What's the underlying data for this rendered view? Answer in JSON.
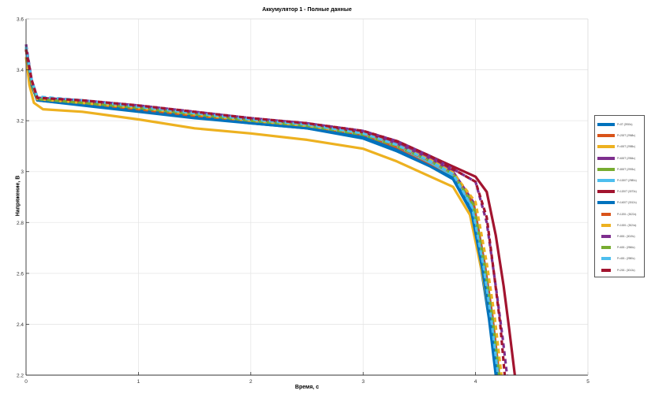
{
  "title": "Аккумулятор 1 - Полные данные",
  "xlabel": "Время, с",
  "ylabel": "Напряжение, В",
  "axes": {
    "xlim": [
      0,
      5
    ],
    "ylim": [
      2.2,
      3.6
    ],
    "xticks": [
      "0",
      "1",
      "2",
      "3",
      "4",
      "5"
    ],
    "yticks": [
      "2.2",
      "2.4",
      "2.6",
      "2.8",
      "3",
      "3.2",
      "3.4",
      "3.6"
    ]
  },
  "legend": {
    "items": [
      {
        "label": "P=0Т (2950с)",
        "color": "#0072BD",
        "style": "solid"
      },
      {
        "label": "P=200Т (2968с)",
        "color": "#D95319",
        "style": "solid"
      },
      {
        "label": "P=400Т (2985с)",
        "color": "#EDB120",
        "style": "solid"
      },
      {
        "label": "P=600Т (2984с)",
        "color": "#7E2F8E",
        "style": "solid"
      },
      {
        "label": "P=800Т (2993с)",
        "color": "#77AC30",
        "style": "solid"
      },
      {
        "label": "P=1000Т (2980с)",
        "color": "#4DBEEE",
        "style": "solid"
      },
      {
        "label": "P=1200Т (3073с)",
        "color": "#A2142F",
        "style": "solid"
      },
      {
        "label": "P=1400Т (3012с)",
        "color": "#0072BD",
        "style": "solid"
      },
      {
        "label": "P=1200↓ (3022с)",
        "color": "#D95319",
        "style": "dashed"
      },
      {
        "label": "P=1000↓ (3024с)",
        "color": "#EDB120",
        "style": "dashed"
      },
      {
        "label": "P=800↓ (3019с)",
        "color": "#7E2F8E",
        "style": "dashed"
      },
      {
        "label": "P=600↓ (2966с)",
        "color": "#77AC30",
        "style": "dashed"
      },
      {
        "label": "P=400↓ (2980с)",
        "color": "#4DBEEE",
        "style": "dashed"
      },
      {
        "label": "P=200↓ (3013с)",
        "color": "#A2142F",
        "style": "dashed"
      }
    ]
  },
  "chart_data": {
    "type": "line",
    "title": "Аккумулятор 1 - Полные данные",
    "xlabel": "Время, с",
    "ylabel": "Напряжение, В",
    "xlim": [
      0,
      5
    ],
    "ylim": [
      2.2,
      3.6
    ],
    "grid": true,
    "legend_position": "outside-right",
    "x": [
      0,
      0.02,
      0.05,
      0.1,
      0.2,
      0.5,
      1.0,
      1.5,
      2.0,
      2.5,
      3.0,
      3.3,
      3.6,
      3.8,
      3.95,
      4.05,
      4.12,
      4.18,
      4.22,
      4.25,
      4.3,
      4.35
    ],
    "series": [
      {
        "name": "P=0Т (2950с)",
        "color": "#0072BD",
        "style": "solid",
        "points": [
          [
            0,
            3.48
          ],
          [
            0.05,
            3.34
          ],
          [
            0.1,
            3.28
          ],
          [
            0.5,
            3.26
          ],
          [
            1.0,
            3.235
          ],
          [
            1.5,
            3.21
          ],
          [
            2.0,
            3.19
          ],
          [
            2.5,
            3.17
          ],
          [
            3.0,
            3.13
          ],
          [
            3.3,
            3.08
          ],
          [
            3.6,
            3.02
          ],
          [
            3.8,
            2.97
          ],
          [
            3.95,
            2.85
          ],
          [
            4.05,
            2.62
          ],
          [
            4.12,
            2.42
          ],
          [
            4.18,
            2.2
          ]
        ]
      },
      {
        "name": "P=200Т (2968с)",
        "color": "#D95319",
        "style": "solid",
        "points": [
          [
            0,
            3.48
          ],
          [
            0.05,
            3.34
          ],
          [
            0.1,
            3.28
          ],
          [
            0.5,
            3.265
          ],
          [
            1.0,
            3.24
          ],
          [
            1.5,
            3.215
          ],
          [
            2.0,
            3.195
          ],
          [
            2.5,
            3.175
          ],
          [
            3.0,
            3.14
          ],
          [
            3.3,
            3.09
          ],
          [
            3.6,
            3.03
          ],
          [
            3.8,
            2.98
          ],
          [
            3.97,
            2.86
          ],
          [
            4.07,
            2.62
          ],
          [
            4.14,
            2.42
          ],
          [
            4.2,
            2.2
          ]
        ]
      },
      {
        "name": "P=400Т (2985с)",
        "color": "#EDB120",
        "style": "solid",
        "points": [
          [
            0,
            3.45
          ],
          [
            0.03,
            3.34
          ],
          [
            0.07,
            3.27
          ],
          [
            0.15,
            3.245
          ],
          [
            0.5,
            3.235
          ],
          [
            1.0,
            3.205
          ],
          [
            1.5,
            3.17
          ],
          [
            2.0,
            3.15
          ],
          [
            2.5,
            3.125
          ],
          [
            3.0,
            3.09
          ],
          [
            3.3,
            3.04
          ],
          [
            3.6,
            2.98
          ],
          [
            3.8,
            2.94
          ],
          [
            3.95,
            2.83
          ],
          [
            4.06,
            2.6
          ],
          [
            4.14,
            2.4
          ],
          [
            4.2,
            2.2
          ]
        ]
      },
      {
        "name": "P=600Т (2984с)",
        "color": "#7E2F8E",
        "style": "solid",
        "points": [
          [
            0,
            3.49
          ],
          [
            0.05,
            3.36
          ],
          [
            0.1,
            3.29
          ],
          [
            0.5,
            3.275
          ],
          [
            1.0,
            3.255
          ],
          [
            1.5,
            3.23
          ],
          [
            2.0,
            3.205
          ],
          [
            2.5,
            3.185
          ],
          [
            3.0,
            3.15
          ],
          [
            3.3,
            3.11
          ],
          [
            3.6,
            3.05
          ],
          [
            3.8,
            3.0
          ],
          [
            3.98,
            2.88
          ],
          [
            4.08,
            2.64
          ],
          [
            4.15,
            2.43
          ],
          [
            4.21,
            2.2
          ]
        ]
      },
      {
        "name": "P=800Т (2993с)",
        "color": "#77AC30",
        "style": "solid",
        "points": [
          [
            0,
            3.49
          ],
          [
            0.05,
            3.35
          ],
          [
            0.1,
            3.285
          ],
          [
            0.5,
            3.27
          ],
          [
            1.0,
            3.25
          ],
          [
            1.5,
            3.225
          ],
          [
            2.0,
            3.2
          ],
          [
            2.5,
            3.18
          ],
          [
            3.0,
            3.145
          ],
          [
            3.3,
            3.1
          ],
          [
            3.6,
            3.04
          ],
          [
            3.8,
            2.99
          ],
          [
            3.98,
            2.87
          ],
          [
            4.08,
            2.63
          ],
          [
            4.15,
            2.42
          ],
          [
            4.21,
            2.2
          ]
        ]
      },
      {
        "name": "P=1000Т (2980с)",
        "color": "#4DBEEE",
        "style": "solid",
        "points": [
          [
            0,
            3.49
          ],
          [
            0.05,
            3.35
          ],
          [
            0.1,
            3.29
          ],
          [
            0.5,
            3.275
          ],
          [
            1.0,
            3.255
          ],
          [
            1.5,
            3.225
          ],
          [
            2.0,
            3.2
          ],
          [
            2.5,
            3.18
          ],
          [
            3.0,
            3.145
          ],
          [
            3.3,
            3.1
          ],
          [
            3.6,
            3.035
          ],
          [
            3.8,
            2.985
          ],
          [
            3.97,
            2.86
          ],
          [
            4.07,
            2.63
          ],
          [
            4.14,
            2.42
          ],
          [
            4.2,
            2.2
          ]
        ]
      },
      {
        "name": "P=1200Т (3073с)",
        "color": "#A2142F",
        "style": "solid",
        "points": [
          [
            0,
            3.48
          ],
          [
            0.05,
            3.35
          ],
          [
            0.1,
            3.285
          ],
          [
            0.5,
            3.275
          ],
          [
            1.0,
            3.255
          ],
          [
            1.5,
            3.23
          ],
          [
            2.0,
            3.205
          ],
          [
            2.5,
            3.19
          ],
          [
            3.0,
            3.155
          ],
          [
            3.3,
            3.12
          ],
          [
            3.6,
            3.06
          ],
          [
            3.8,
            3.02
          ],
          [
            4.0,
            2.98
          ],
          [
            4.1,
            2.92
          ],
          [
            4.18,
            2.75
          ],
          [
            4.25,
            2.55
          ],
          [
            4.3,
            2.38
          ],
          [
            4.35,
            2.2
          ]
        ]
      },
      {
        "name": "P=1400Т (3012с)",
        "color": "#0072BD",
        "style": "solid",
        "points": [
          [
            0,
            3.48
          ],
          [
            0.05,
            3.34
          ],
          [
            0.1,
            3.28
          ],
          [
            0.5,
            3.262
          ],
          [
            1.0,
            3.24
          ],
          [
            1.5,
            3.215
          ],
          [
            2.0,
            3.19
          ],
          [
            2.5,
            3.17
          ],
          [
            3.0,
            3.135
          ],
          [
            3.3,
            3.085
          ],
          [
            3.6,
            3.02
          ],
          [
            3.8,
            2.975
          ],
          [
            3.96,
            2.85
          ],
          [
            4.06,
            2.62
          ],
          [
            4.13,
            2.42
          ],
          [
            4.19,
            2.2
          ]
        ]
      },
      {
        "name": "P=1200↓ (3022с)",
        "color": "#D95319",
        "style": "dashed",
        "points": [
          [
            0,
            3.48
          ],
          [
            0.05,
            3.35
          ],
          [
            0.1,
            3.285
          ],
          [
            0.5,
            3.27
          ],
          [
            1.0,
            3.245
          ],
          [
            1.5,
            3.22
          ],
          [
            2.0,
            3.2
          ],
          [
            2.5,
            3.18
          ],
          [
            3.0,
            3.145
          ],
          [
            3.3,
            3.1
          ],
          [
            3.6,
            3.04
          ],
          [
            3.8,
            2.99
          ],
          [
            3.98,
            2.87
          ],
          [
            4.08,
            2.63
          ],
          [
            4.15,
            2.42
          ],
          [
            4.21,
            2.2
          ]
        ]
      },
      {
        "name": "P=1000↓ (3024с)",
        "color": "#EDB120",
        "style": "dashed",
        "points": [
          [
            0,
            3.48
          ],
          [
            0.05,
            3.35
          ],
          [
            0.1,
            3.285
          ],
          [
            0.5,
            3.27
          ],
          [
            1.0,
            3.25
          ],
          [
            1.5,
            3.225
          ],
          [
            2.0,
            3.2
          ],
          [
            2.5,
            3.18
          ],
          [
            3.0,
            3.15
          ],
          [
            3.3,
            3.105
          ],
          [
            3.6,
            3.045
          ],
          [
            3.8,
            2.995
          ],
          [
            4.0,
            2.88
          ],
          [
            4.1,
            2.64
          ],
          [
            4.17,
            2.43
          ],
          [
            4.23,
            2.2
          ]
        ]
      },
      {
        "name": "P=800↓ (3019с)",
        "color": "#7E2F8E",
        "style": "dashed",
        "points": [
          [
            0,
            3.5
          ],
          [
            0.05,
            3.36
          ],
          [
            0.1,
            3.29
          ],
          [
            0.5,
            3.28
          ],
          [
            1.0,
            3.26
          ],
          [
            1.5,
            3.235
          ],
          [
            2.0,
            3.21
          ],
          [
            2.5,
            3.19
          ],
          [
            3.0,
            3.16
          ],
          [
            3.3,
            3.12
          ],
          [
            3.6,
            3.06
          ],
          [
            3.8,
            3.01
          ],
          [
            4.0,
            2.96
          ],
          [
            4.1,
            2.8
          ],
          [
            4.18,
            2.55
          ],
          [
            4.24,
            2.35
          ],
          [
            4.28,
            2.2
          ]
        ]
      },
      {
        "name": "P=600↓ (2966с)",
        "color": "#77AC30",
        "style": "dashed",
        "points": [
          [
            0,
            3.49
          ],
          [
            0.05,
            3.35
          ],
          [
            0.1,
            3.285
          ],
          [
            0.5,
            3.27
          ],
          [
            1.0,
            3.25
          ],
          [
            1.5,
            3.225
          ],
          [
            2.0,
            3.2
          ],
          [
            2.5,
            3.18
          ],
          [
            3.0,
            3.145
          ],
          [
            3.3,
            3.1
          ],
          [
            3.6,
            3.04
          ],
          [
            3.8,
            2.99
          ],
          [
            3.98,
            2.87
          ],
          [
            4.08,
            2.63
          ],
          [
            4.15,
            2.42
          ],
          [
            4.21,
            2.2
          ]
        ]
      },
      {
        "name": "P=400↓ (2980с)",
        "color": "#4DBEEE",
        "style": "dashed",
        "points": [
          [
            0,
            3.49
          ],
          [
            0.05,
            3.36
          ],
          [
            0.1,
            3.295
          ],
          [
            0.5,
            3.28
          ],
          [
            1.0,
            3.255
          ],
          [
            1.5,
            3.23
          ],
          [
            2.0,
            3.205
          ],
          [
            2.5,
            3.185
          ],
          [
            3.0,
            3.15
          ],
          [
            3.3,
            3.105
          ],
          [
            3.6,
            3.04
          ],
          [
            3.8,
            2.99
          ],
          [
            3.97,
            2.86
          ],
          [
            4.07,
            2.63
          ],
          [
            4.14,
            2.42
          ],
          [
            4.2,
            2.2
          ]
        ]
      },
      {
        "name": "P=200↓ (3013с)",
        "color": "#A2142F",
        "style": "dashed",
        "points": [
          [
            0,
            3.48
          ],
          [
            0.05,
            3.36
          ],
          [
            0.1,
            3.29
          ],
          [
            0.5,
            3.28
          ],
          [
            1.0,
            3.26
          ],
          [
            1.5,
            3.235
          ],
          [
            2.0,
            3.21
          ],
          [
            2.5,
            3.19
          ],
          [
            3.0,
            3.16
          ],
          [
            3.3,
            3.12
          ],
          [
            3.6,
            3.06
          ],
          [
            3.8,
            3.01
          ],
          [
            4.0,
            2.96
          ],
          [
            4.1,
            2.82
          ],
          [
            4.17,
            2.58
          ],
          [
            4.22,
            2.4
          ],
          [
            4.26,
            2.2
          ]
        ]
      }
    ]
  }
}
